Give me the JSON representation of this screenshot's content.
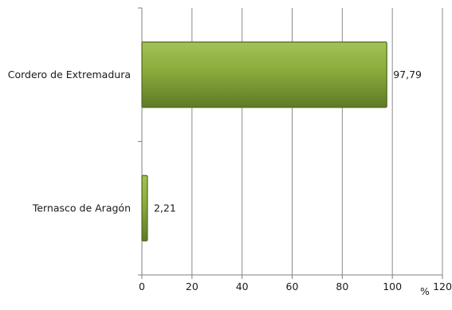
{
  "chart_data": {
    "type": "bar",
    "orientation": "horizontal",
    "categories": [
      "Cordero de Extremadura",
      "Ternasco de Aragón"
    ],
    "values": [
      97.79,
      2.21
    ],
    "data_labels": [
      "97,79",
      "2,21"
    ],
    "xlim": [
      0,
      120
    ],
    "x_ticks": [
      0,
      20,
      40,
      60,
      80,
      100,
      120
    ],
    "unit_label": "%",
    "title": "",
    "xlabel": "",
    "ylabel": "",
    "grid": "vertical",
    "legend": "none",
    "colors": {
      "bar_fill": "#8aaa3c",
      "bar_fill_light": "#a3c257",
      "bar_fill_dark": "#5f7a26",
      "bar_stroke": "#4f6a1e",
      "grid": "#8c8c8c",
      "axis": "#7f7f7f"
    }
  }
}
